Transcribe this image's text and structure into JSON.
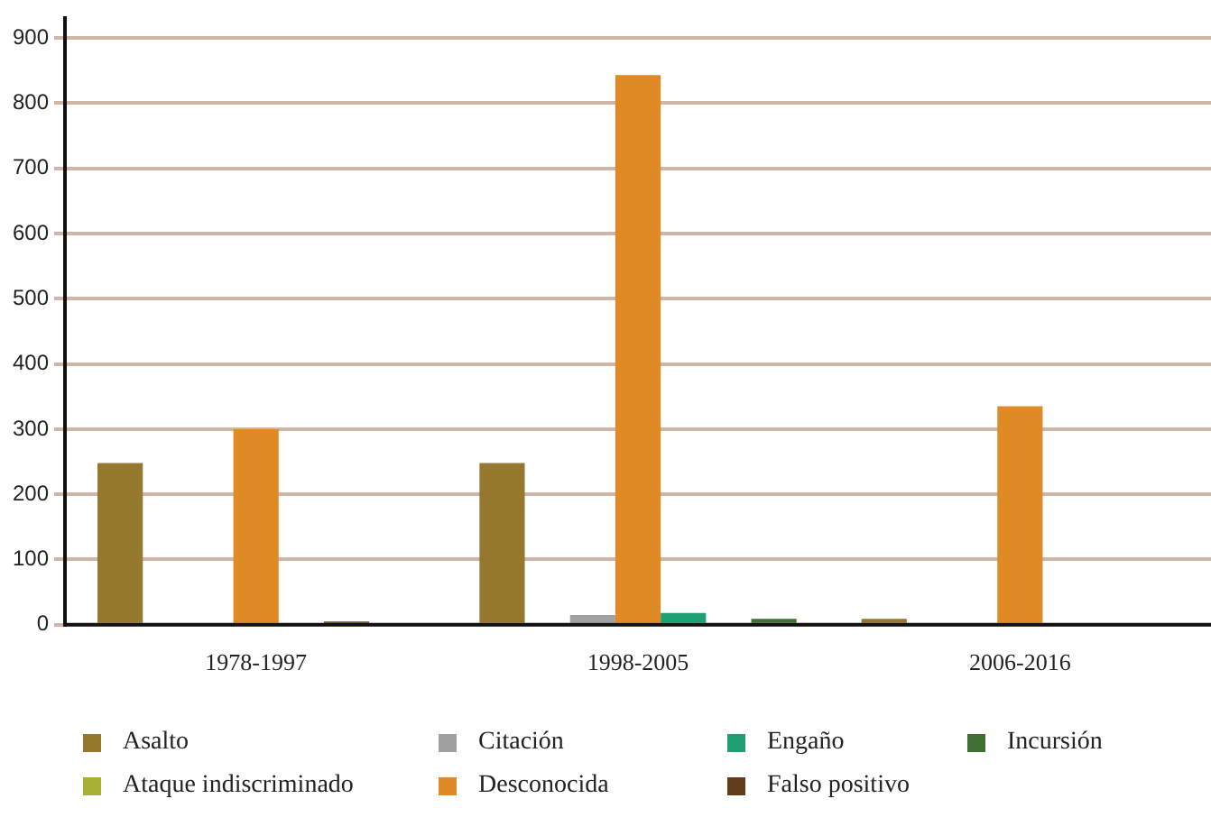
{
  "chart_data": {
    "type": "bar",
    "categories": [
      "1978-1997",
      "1998-2005",
      "2006-2016"
    ],
    "series": [
      {
        "name": "Asalto",
        "color": "#96772e",
        "values": [
          248,
          248,
          9
        ]
      },
      {
        "name": "Ataque indiscriminado",
        "color": "#a8b034",
        "values": [
          0,
          0,
          0
        ]
      },
      {
        "name": "Citación",
        "color": "#a0a0a0",
        "values": [
          0,
          15,
          0
        ]
      },
      {
        "name": "Desconocida",
        "color": "#e08a26",
        "values": [
          300,
          843,
          335
        ]
      },
      {
        "name": "Engaño",
        "color": "#1e9e73",
        "values": [
          0,
          18,
          0
        ]
      },
      {
        "name": "Falso positivo",
        "color": "#613c1a",
        "values": [
          5,
          0,
          0
        ]
      },
      {
        "name": "Incursión",
        "color": "#3f7132",
        "values": [
          0,
          9,
          0
        ]
      }
    ],
    "ylim": [
      0,
      930
    ],
    "yticks": [
      0,
      100,
      200,
      300,
      400,
      500,
      600,
      700,
      800,
      900
    ],
    "grid": "y",
    "legend": "bottom"
  }
}
